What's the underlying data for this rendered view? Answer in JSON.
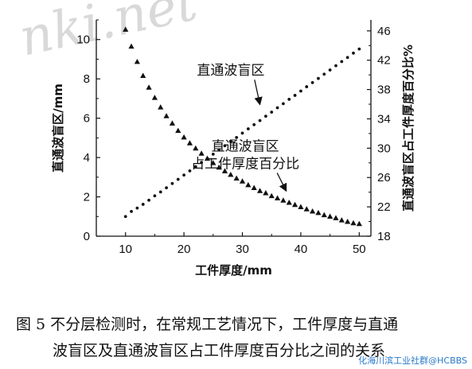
{
  "watermark": "nki.net",
  "credit": "化海川滨工业社群@HCBBS",
  "caption": {
    "line1": "图 5   不分层检测时，在常规工艺情况下，工件厚度与直通",
    "line2": "波盲区及直通波盲区占工件厚度百分比之间的关系"
  },
  "chart_data": {
    "type": "scatter",
    "xlabel": "工件厚度/mm",
    "ylabel_left": "直通波盲区/mm",
    "ylabel_right": "直通波盲区占工件厚度百分比%",
    "xlim": [
      5,
      52
    ],
    "ylim_left": [
      0,
      11
    ],
    "ylim_right": [
      18,
      47.5
    ],
    "xticks": [
      10,
      20,
      30,
      40,
      50
    ],
    "yticks_left": [
      0,
      2,
      4,
      6,
      8,
      10
    ],
    "yticks_right": [
      18,
      22,
      26,
      30,
      34,
      38,
      42,
      46
    ],
    "series": [
      {
        "name": "直通波盲区",
        "axis": "left",
        "marker": "dot",
        "x": [
          10,
          11,
          12,
          13,
          14,
          15,
          16,
          17,
          18,
          19,
          20,
          21,
          22,
          23,
          24,
          25,
          26,
          27,
          28,
          29,
          30,
          31,
          32,
          33,
          34,
          35,
          36,
          37,
          38,
          39,
          40,
          41,
          42,
          43,
          44,
          45,
          46,
          47,
          48,
          49,
          50
        ],
        "values": [
          1.0,
          1.26,
          1.43,
          1.62,
          1.83,
          2.05,
          2.25,
          2.46,
          2.68,
          2.89,
          3.11,
          3.32,
          3.54,
          3.75,
          3.95,
          4.17,
          4.39,
          4.6,
          4.82,
          5.02,
          5.24,
          5.46,
          5.67,
          5.88,
          6.1,
          6.31,
          6.53,
          6.74,
          6.96,
          7.16,
          7.38,
          7.6,
          7.81,
          8.02,
          8.24,
          8.45,
          8.67,
          8.88,
          9.09,
          9.31,
          9.52
        ]
      },
      {
        "name": "直通波盲区占工件厚度百分比",
        "axis": "right",
        "marker": "triangle",
        "x": [
          10,
          11,
          12,
          13,
          14,
          15,
          16,
          17,
          18,
          19,
          20,
          21,
          22,
          23,
          24,
          25,
          26,
          27,
          28,
          29,
          30,
          31,
          32,
          33,
          34,
          35,
          36,
          37,
          38,
          39,
          40,
          41,
          42,
          43,
          44,
          45,
          46,
          47,
          48,
          49,
          50
        ],
        "values": [
          46.2,
          43.9,
          41.8,
          39.9,
          38.3,
          36.9,
          35.6,
          34.4,
          33.4,
          32.4,
          31.5,
          30.7,
          30.0,
          29.3,
          28.6,
          28.0,
          27.4,
          26.9,
          26.4,
          25.9,
          25.5,
          25.0,
          24.6,
          24.2,
          23.9,
          23.5,
          23.2,
          22.9,
          22.6,
          22.3,
          22.0,
          21.7,
          21.4,
          21.2,
          20.9,
          20.7,
          20.5,
          20.2,
          20.0,
          19.8,
          19.7
        ]
      }
    ],
    "annotations": [
      {
        "lines": [
          "直通波盲区"
        ],
        "x": 28,
        "y_left": 8.2,
        "arrow_to": {
          "x": 33,
          "y_left": 6.7
        }
      },
      {
        "lines": [
          "直通波盲区",
          "占工件厚度百分比"
        ],
        "x": 30.5,
        "y_left": 4.35,
        "arrow_to": {
          "x": 37.5,
          "y_left": 2.3
        }
      }
    ]
  }
}
